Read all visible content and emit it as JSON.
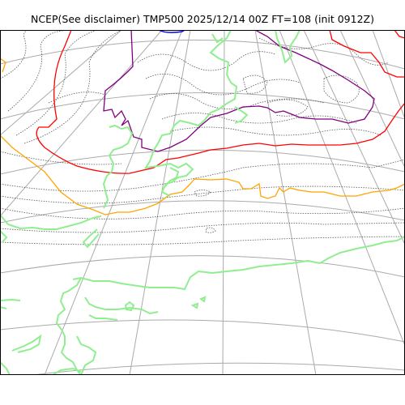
{
  "title": "NCEP(See disclaimer) TMP500 2025/12/14 00Z FT=108 (init 0912Z)",
  "colors": {
    "coastline": "#90ee90",
    "graticule": "#aaaaaa",
    "minor_contour": "#555555",
    "contour_purple": "#800080",
    "contour_red": "#ff0000",
    "contour_orange": "#ffa500",
    "contour_blue": "#0000ff",
    "frame": "#000000"
  }
}
